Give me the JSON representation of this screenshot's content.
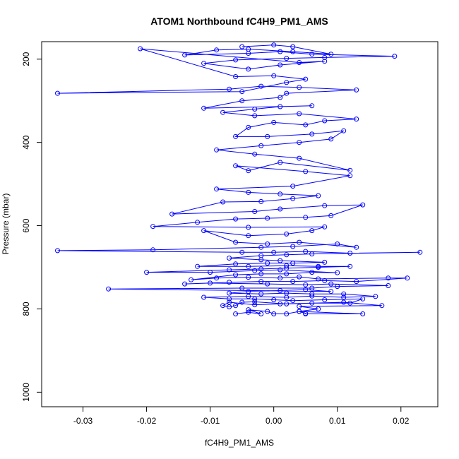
{
  "chart_data": {
    "type": "line",
    "title": "ATOM1 Northbound fC4H9_PM1_AMS",
    "xlabel": "fC4H9_PM1_AMS",
    "ylabel": "Pressure (mbar)",
    "xlim": [
      -0.0365,
      0.0258
    ],
    "ylim": [
      1035,
      158
    ],
    "x_ticks": [
      -0.03,
      -0.02,
      -0.01,
      0.0,
      0.01,
      0.02
    ],
    "x_tick_labels": [
      "-0.03",
      "-0.02",
      "-0.01",
      "0.00",
      "0.01",
      "0.02"
    ],
    "y_ticks": [
      200,
      400,
      600,
      800,
      1000
    ],
    "y_tick_labels": [
      "200",
      "400",
      "600",
      "800",
      "1000"
    ],
    "grid": false,
    "marker": "open-circle",
    "colors": {
      "series": "#0000ff",
      "axes": "#000000",
      "background": "#ffffff"
    },
    "series": [
      {
        "points": [
          [
            -0.006,
            812
          ],
          [
            -0.004,
            808
          ],
          [
            -0.002,
            812
          ],
          [
            -0.004,
            802
          ],
          [
            -0.001,
            806
          ],
          [
            0.0,
            812
          ],
          [
            0.002,
            812
          ],
          [
            0.004,
            806
          ],
          [
            0.005,
            811
          ],
          [
            0.005,
            812
          ],
          [
            0.014,
            812
          ],
          [
            0.004,
            806
          ],
          [
            0.007,
            800
          ],
          [
            0.004,
            794
          ],
          [
            0.017,
            792
          ],
          [
            0.011,
            784
          ],
          [
            0.002,
            788
          ],
          [
            -0.003,
            783
          ],
          [
            -0.005,
            784
          ],
          [
            -0.006,
            792
          ],
          [
            -0.007,
            795
          ],
          [
            -0.008,
            792
          ],
          [
            -0.007,
            784
          ],
          [
            -0.003,
            790
          ],
          [
            0.001,
            788
          ],
          [
            0.006,
            786
          ],
          [
            0.012,
            786
          ],
          [
            0.014,
            776
          ],
          [
            0.008,
            778
          ],
          [
            0.003,
            780
          ],
          [
            0.0,
            778
          ],
          [
            -0.003,
            776
          ],
          [
            -0.007,
            776
          ],
          [
            -0.011,
            772
          ],
          [
            -0.004,
            770
          ],
          [
            0.002,
            772
          ],
          [
            0.006,
            769
          ],
          [
            0.011,
            772
          ],
          [
            0.016,
            770
          ],
          [
            0.011,
            764
          ],
          [
            0.006,
            764
          ],
          [
            0.002,
            762
          ],
          [
            -0.002,
            764
          ],
          [
            -0.007,
            762
          ],
          [
            -0.004,
            758
          ],
          [
            0.001,
            756
          ],
          [
            0.005,
            754
          ],
          [
            0.009,
            758
          ],
          [
            -0.026,
            752
          ],
          [
            -0.005,
            750
          ],
          [
            0.006,
            750
          ],
          [
            0.01,
            746
          ],
          [
            0.018,
            744
          ],
          [
            0.009,
            740
          ],
          [
            0.005,
            742
          ],
          [
            -0.001,
            740
          ],
          [
            -0.01,
            738
          ],
          [
            -0.014,
            740
          ],
          [
            -0.007,
            736
          ],
          [
            -0.002,
            734
          ],
          [
            0.003,
            734
          ],
          [
            0.008,
            732
          ],
          [
            0.013,
            734
          ],
          [
            0.021,
            726
          ],
          [
            0.018,
            726
          ],
          [
            0.007,
            728
          ],
          [
            0.004,
            723
          ],
          [
            0.001,
            726
          ],
          [
            -0.004,
            724
          ],
          [
            -0.009,
            726
          ],
          [
            -0.013,
            730
          ],
          [
            -0.006,
            718
          ],
          [
            -0.002,
            716
          ],
          [
            0.002,
            716
          ],
          [
            0.006,
            712
          ],
          [
            0.01,
            713
          ],
          [
            0.001,
            706
          ],
          [
            -0.003,
            708
          ],
          [
            -0.01,
            712
          ],
          [
            -0.02,
            712
          ],
          [
            -0.007,
            706
          ],
          [
            -0.002,
            704
          ],
          [
            0.002,
            702
          ],
          [
            0.007,
            700
          ],
          [
            0.012,
            698
          ],
          [
            0.007,
            698
          ],
          [
            0.002,
            696
          ],
          [
            -0.004,
            698
          ],
          [
            -0.012,
            698
          ],
          [
            -0.006,
            692
          ],
          [
            -0.001,
            690
          ],
          [
            0.003,
            690
          ],
          [
            0.008,
            688
          ],
          [
            0.001,
            684
          ],
          [
            -0.002,
            682
          ],
          [
            -0.007,
            678
          ],
          [
            -0.002,
            672
          ],
          [
            0.002,
            670
          ],
          [
            0.006,
            668
          ],
          [
            0.023,
            664
          ],
          [
            0.012,
            666
          ],
          [
            0.005,
            662
          ],
          [
            0.0,
            664
          ],
          [
            -0.005,
            664
          ],
          [
            -0.034,
            660
          ],
          [
            -0.019,
            658
          ],
          [
            -0.002,
            652
          ],
          [
            0.003,
            650
          ],
          [
            0.01,
            644
          ],
          [
            0.013,
            652
          ],
          [
            0.004,
            640
          ],
          [
            -0.001,
            644
          ],
          [
            -0.006,
            640
          ],
          [
            -0.011,
            612
          ],
          [
            -0.004,
            624
          ],
          [
            0.002,
            620
          ],
          [
            0.006,
            612
          ],
          [
            0.008,
            603
          ],
          [
            -0.004,
            604
          ],
          [
            -0.019,
            602
          ],
          [
            -0.012,
            592
          ],
          [
            -0.006,
            584
          ],
          [
            -0.001,
            582
          ],
          [
            0.005,
            580
          ],
          [
            0.009,
            576
          ],
          [
            0.014,
            550
          ],
          [
            0.008,
            552
          ],
          [
            0.001,
            560
          ],
          [
            -0.003,
            566
          ],
          [
            -0.016,
            572
          ],
          [
            -0.008,
            543
          ],
          [
            -0.002,
            542
          ],
          [
            0.003,
            535
          ],
          [
            0.007,
            528
          ],
          [
            0.001,
            524
          ],
          [
            -0.004,
            520
          ],
          [
            -0.009,
            512
          ],
          [
            0.003,
            505
          ],
          [
            0.012,
            480
          ],
          [
            0.005,
            470
          ],
          [
            -0.006,
            456
          ],
          [
            -0.004,
            468
          ],
          [
            0.001,
            448
          ],
          [
            0.012,
            467
          ],
          [
            0.004,
            438
          ],
          [
            -0.003,
            428
          ],
          [
            -0.009,
            418
          ],
          [
            -0.002,
            408
          ],
          [
            0.004,
            400
          ],
          [
            0.009,
            392
          ],
          [
            0.011,
            372
          ],
          [
            0.006,
            380
          ],
          [
            -0.001,
            386
          ],
          [
            -0.006,
            386
          ],
          [
            -0.004,
            364
          ],
          [
            0.0,
            352
          ],
          [
            0.005,
            358
          ],
          [
            0.008,
            348
          ],
          [
            0.013,
            344
          ],
          [
            0.004,
            331
          ],
          [
            -0.003,
            336
          ],
          [
            -0.008,
            328
          ],
          [
            -0.003,
            320
          ],
          [
            0.001,
            314
          ],
          [
            0.006,
            312
          ],
          [
            -0.011,
            318
          ],
          [
            -0.005,
            300
          ],
          [
            0.001,
            292
          ],
          [
            0.002,
            282
          ],
          [
            0.013,
            274
          ],
          [
            0.004,
            268
          ],
          [
            -0.002,
            265
          ],
          [
            -0.007,
            272
          ],
          [
            -0.034,
            282
          ],
          [
            -0.005,
            278
          ],
          [
            0.002,
            256
          ],
          [
            0.005,
            248
          ],
          [
            0.0,
            240
          ],
          [
            -0.006,
            242
          ],
          [
            -0.021,
            175
          ],
          [
            0.004,
            208
          ],
          [
            0.008,
            205
          ],
          [
            0.001,
            214
          ],
          [
            -0.004,
            224
          ],
          [
            -0.011,
            210
          ],
          [
            -0.006,
            202
          ],
          [
            0.002,
            198
          ],
          [
            0.008,
            196
          ],
          [
            0.019,
            193
          ],
          [
            0.006,
            188
          ],
          [
            0.001,
            182
          ],
          [
            -0.004,
            186
          ],
          [
            -0.014,
            190
          ],
          [
            -0.009,
            178
          ],
          [
            -0.004,
            176
          ],
          [
            0.003,
            182
          ],
          [
            0.009,
            188
          ],
          [
            0.003,
            170
          ],
          [
            0.0,
            166
          ],
          [
            -0.005,
            170
          ]
        ]
      }
    ]
  }
}
